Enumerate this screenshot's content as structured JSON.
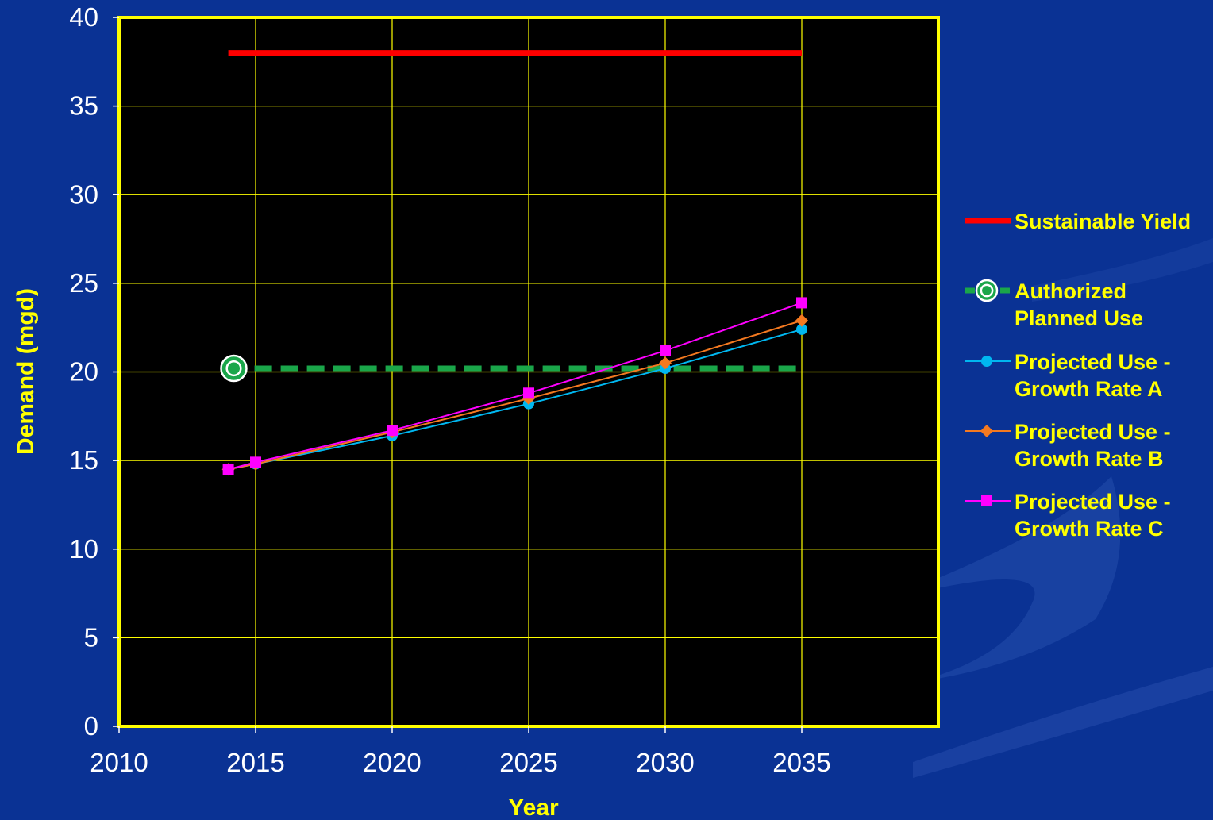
{
  "chart_data": {
    "type": "line",
    "title": "",
    "xlabel": "Year",
    "ylabel": "Demand (mgd)",
    "xlim": [
      2010,
      2040
    ],
    "ylim": [
      0,
      40
    ],
    "x_ticks": [
      "2010",
      "2015",
      "2020",
      "2025",
      "2030",
      "2035"
    ],
    "y_ticks": [
      "0",
      "5",
      "10",
      "15",
      "20",
      "25",
      "30",
      "35",
      "40"
    ],
    "grid": true,
    "legend_position": "right",
    "colors": {
      "page_background": "#0a3294",
      "plot_background": "#000000",
      "plot_border": "#ffff00",
      "grid": "#ffff00"
    },
    "series": [
      {
        "name": "Sustainable Yield",
        "legend_lines": [
          "Sustainable Yield"
        ],
        "color": "#ff0000",
        "style": "solid-thick",
        "marker": "none",
        "points": [
          [
            2014,
            38
          ],
          [
            2035,
            38
          ]
        ]
      },
      {
        "name": "Authorized Planned Use",
        "legend_lines": [
          "Authorized",
          "Planned Use"
        ],
        "color": "#1aa64a",
        "style": "dashed-thick",
        "marker": "ring",
        "points": [
          [
            2014,
            20.2
          ],
          [
            2035,
            20.2
          ]
        ],
        "marker_points": [
          [
            2014.2,
            20.2
          ]
        ]
      },
      {
        "name": "Projected Use - Growth Rate A",
        "legend_lines": [
          "Projected Use -",
          "Growth Rate A"
        ],
        "color": "#00b7f0",
        "style": "solid",
        "marker": "circle",
        "points": [
          [
            2014,
            14.5
          ],
          [
            2015,
            14.8
          ],
          [
            2020,
            16.4
          ],
          [
            2025,
            18.2
          ],
          [
            2030,
            20.2
          ],
          [
            2035,
            22.4
          ]
        ]
      },
      {
        "name": "Projected Use - Growth Rate B",
        "legend_lines": [
          "Projected Use -",
          "Growth Rate B"
        ],
        "color": "#f47920",
        "style": "solid",
        "marker": "diamond",
        "points": [
          [
            2014,
            14.5
          ],
          [
            2015,
            14.8
          ],
          [
            2020,
            16.6
          ],
          [
            2025,
            18.5
          ],
          [
            2030,
            20.5
          ],
          [
            2035,
            22.9
          ]
        ]
      },
      {
        "name": "Projected Use - Growth Rate C",
        "legend_lines": [
          "Projected Use -",
          "Growth Rate C"
        ],
        "color": "#ff00ff",
        "style": "solid",
        "marker": "square",
        "points": [
          [
            2014,
            14.5
          ],
          [
            2015,
            14.9
          ],
          [
            2020,
            16.7
          ],
          [
            2025,
            18.8
          ],
          [
            2030,
            21.2
          ],
          [
            2035,
            23.9
          ]
        ]
      }
    ]
  }
}
